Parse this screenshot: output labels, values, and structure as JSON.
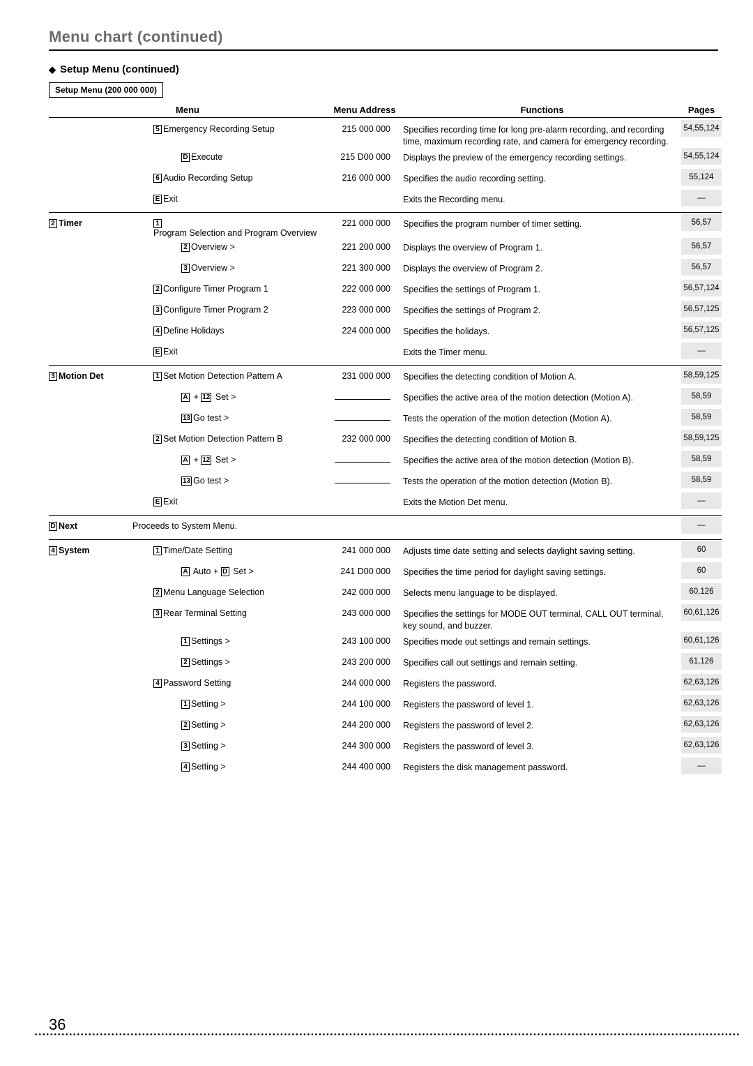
{
  "page": {
    "header_title": "Menu chart (continued)",
    "sub_heading": "Setup Menu (continued)",
    "box_label": "Setup Menu (200 000 000)",
    "columns": {
      "menu": "Menu",
      "addr": "Menu Address",
      "func": "Functions",
      "pages": "Pages"
    },
    "footer_page": "36"
  },
  "rows": [
    {
      "left": "",
      "k": "5",
      "t": "Emergency Recording Setup",
      "ind": 1,
      "addr": "215 000 000",
      "func": "Specifies recording time for long pre-alarm recording, and recording time, maximum recording rate, and camera for emergency recording.",
      "pages": "54,55,124"
    },
    {
      "left": "",
      "k": "D",
      "t": "Execute",
      "ind": 2,
      "addr": "215 D00 000",
      "func": "Displays the preview of the emergency recording settings.",
      "pages": "54,55,124"
    },
    {
      "left": "",
      "k": "6",
      "t": "Audio Recording Setup",
      "ind": 1,
      "addr": "216 000 000",
      "func": "Specifies the audio recording setting.",
      "pages": "55,124"
    },
    {
      "left": "",
      "k": "E",
      "t": "Exit",
      "ind": 1,
      "addr": "",
      "func": "Exits the Recording menu.",
      "pages": "—"
    },
    {
      "sep": true
    },
    {
      "left": "2|Timer",
      "k": "1",
      "t": "Program Selection and Program Overview",
      "ind": 1,
      "addr": "221 000 000",
      "func": "Specifies the program number of timer setting.",
      "pages": "56,57"
    },
    {
      "left": "",
      "k": "2",
      "t": "Overview >",
      "ind": 2,
      "addr": "221 200 000",
      "func": "Displays the overview of Program 1.",
      "pages": "56,57"
    },
    {
      "left": "",
      "k": "3",
      "t": "Overview >",
      "ind": 2,
      "addr": "221 300 000",
      "func": "Displays the overview of Program 2.",
      "pages": "56,57"
    },
    {
      "left": "",
      "k": "2",
      "t": "Configure Timer Program 1",
      "ind": 1,
      "addr": "222 000 000",
      "func": "Specifies the settings of Program 1.",
      "pages": "56,57,124"
    },
    {
      "left": "",
      "k": "3",
      "t": "Configure Timer Program 2",
      "ind": 1,
      "addr": "223 000 000",
      "func": "Specifies the settings of Program 2.",
      "pages": "56,57,125"
    },
    {
      "left": "",
      "k": "4",
      "t": "Define Holidays",
      "ind": 1,
      "addr": "224 000 000",
      "func": "Specifies the holidays.",
      "pages": "56,57,125"
    },
    {
      "left": "",
      "k": "E",
      "t": "Exit",
      "ind": 1,
      "addr": "",
      "func": "Exits the Timer menu.",
      "pages": "—"
    },
    {
      "sep": true
    },
    {
      "left": "3|Motion Det",
      "k": "1",
      "t": "Set Motion Detection Pattern A",
      "ind": 1,
      "addr": "231 000 000",
      "func": "Specifies the detecting condition of Motion A.",
      "pages": "58,59,125"
    },
    {
      "left": "",
      "k": "A+12",
      "t": "Set >",
      "ind": 2,
      "addr": "line",
      "func": "Specifies the active area of the motion detection (Motion A).",
      "pages": "58,59"
    },
    {
      "left": "",
      "k": "13",
      "t": "Go test >",
      "ind": 2,
      "addr": "line",
      "func": "Tests the operation of the motion detection (Motion A).",
      "pages": "58,59"
    },
    {
      "left": "",
      "k": "2",
      "t": "Set Motion Detection Pattern B",
      "ind": 1,
      "addr": "232 000 000",
      "func": "Specifies the detecting condition of Motion B.",
      "pages": "58,59,125"
    },
    {
      "left": "",
      "k": "A+12",
      "t": "Set >",
      "ind": 2,
      "addr": "line",
      "func": "Specifies the active area of the motion detection (Motion B).",
      "pages": "58,59"
    },
    {
      "left": "",
      "k": "13",
      "t": "Go test >",
      "ind": 2,
      "addr": "line",
      "func": "Tests the operation of the motion detection (Motion B).",
      "pages": "58,59"
    },
    {
      "left": "",
      "k": "E",
      "t": "Exit",
      "ind": 1,
      "addr": "",
      "func": "Exits the Motion Det menu.",
      "pages": "—"
    },
    {
      "sep": true
    },
    {
      "left": "D|Next",
      "plain": true,
      "t": "Proceeds to System Menu.",
      "ind": 0,
      "addr": "",
      "func": "",
      "pages": "—"
    },
    {
      "sep": true
    },
    {
      "left": "4|System",
      "k": "1",
      "t": "Time/Date Setting",
      "ind": 1,
      "addr": "241 000 000",
      "func": "Adjusts time date setting and selects daylight saving setting.",
      "pages": "60"
    },
    {
      "left": "",
      "k": "A+D",
      "t": "Auto + Set >",
      "ind": 2,
      "special": "autoD",
      "addr": "241 D00 000",
      "func": "Specifies the time period for daylight saving settings.",
      "pages": "60"
    },
    {
      "left": "",
      "k": "2",
      "t": "Menu Language Selection",
      "ind": 1,
      "addr": "242 000 000",
      "func": "Selects menu language to be displayed.",
      "pages": "60,126"
    },
    {
      "left": "",
      "k": "3",
      "t": "Rear Terminal Setting",
      "ind": 1,
      "addr": "243 000 000",
      "func": "Specifies the settings for MODE OUT terminal, CALL OUT terminal, key sound, and buzzer.",
      "pages": "60,61,126"
    },
    {
      "left": "",
      "k": "1",
      "t": "Settings >",
      "ind": 2,
      "addr": "243 100 000",
      "func": "Specifies mode out settings and remain settings.",
      "pages": "60,61,126"
    },
    {
      "left": "",
      "k": "2",
      "t": "Settings >",
      "ind": 2,
      "addr": "243 200 000",
      "func": "Specifies call out settings and remain setting.",
      "pages": "61,126"
    },
    {
      "left": "",
      "k": "4",
      "t": "Password Setting",
      "ind": 1,
      "addr": "244 000 000",
      "func": "Registers the password.",
      "pages": "62,63,126"
    },
    {
      "left": "",
      "k": "1",
      "t": "Setting >",
      "ind": 2,
      "addr": "244 100 000",
      "func": "Registers the password of level 1.",
      "pages": "62,63,126"
    },
    {
      "left": "",
      "k": "2",
      "t": "Setting >",
      "ind": 2,
      "addr": "244 200 000",
      "func": "Registers the password of level 2.",
      "pages": "62,63,126"
    },
    {
      "left": "",
      "k": "3",
      "t": "Setting >",
      "ind": 2,
      "addr": "244 300 000",
      "func": "Registers the password of level 3.",
      "pages": "62,63,126"
    },
    {
      "left": "",
      "k": "4",
      "t": "Setting >",
      "ind": 2,
      "addr": "244 400 000",
      "func": "Registers the disk management password.",
      "pages": "—"
    }
  ]
}
